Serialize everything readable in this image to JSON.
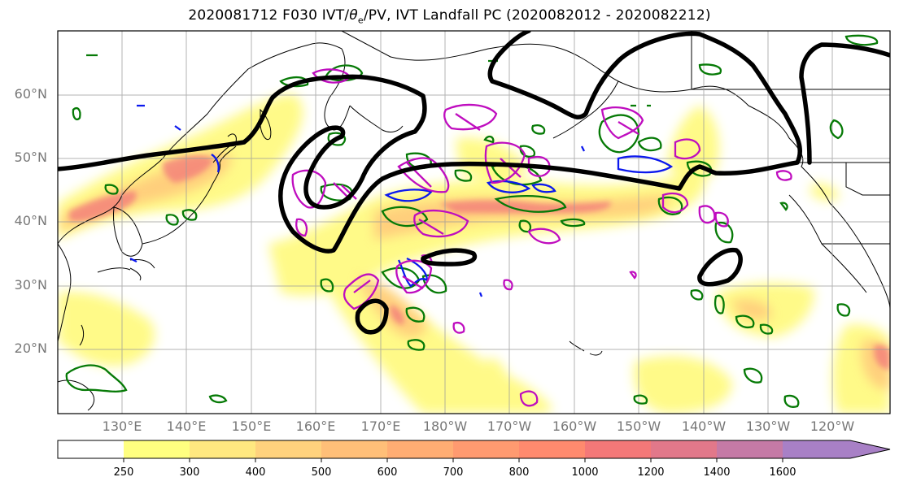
{
  "title": {
    "prefix": "2020081712 F030 IVT/",
    "theta": "θ",
    "theta_sub": "e",
    "suffix": "/PV, IVT Landfall PC (2020082012 - 2020082212)"
  },
  "axes": {
    "lat_labels": [
      "60°N",
      "50°N",
      "40°N",
      "30°N",
      "20°N"
    ],
    "lon_labels": [
      "130°E",
      "140°E",
      "150°E",
      "160°E",
      "170°E",
      "180°W",
      "170°W",
      "160°W",
      "150°W",
      "140°W",
      "130°W",
      "120°W"
    ]
  },
  "colorbar": {
    "ticks": [
      "250",
      "300",
      "400",
      "500",
      "600",
      "700",
      "800",
      "1000",
      "1200",
      "1400",
      "1600"
    ],
    "colors": [
      "#ffff80",
      "#ffe880",
      "#ffd27d",
      "#ffbf78",
      "#ffad73",
      "#ff9a70",
      "#ff8a6e",
      "#f47878",
      "#e2788a",
      "#c57aa6",
      "#a880c6"
    ]
  },
  "legend_colors": {
    "ivt_low": "#fffa82",
    "ivt_high": "#f3797a",
    "theta_contour": "#067a06",
    "pv_contour": "#bf0dbf",
    "pv_neg": "#0b18ee",
    "landfall_pc": "#000000"
  }
}
